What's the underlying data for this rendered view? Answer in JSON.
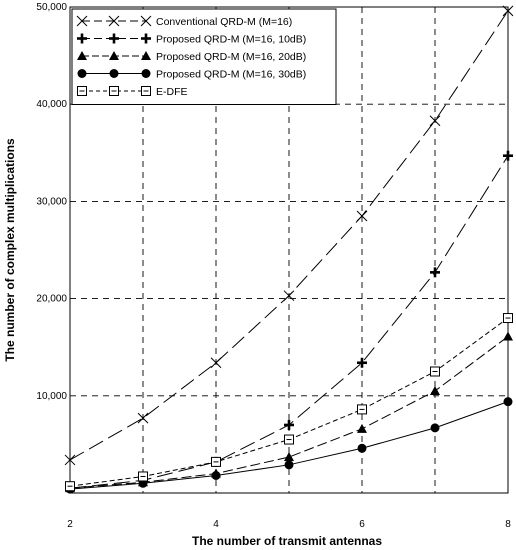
{
  "chart_data": {
    "type": "line",
    "title": "",
    "xlabel": "The number of transmit antennas",
    "ylabel": "The number of complex multiplications",
    "xlim": [
      2,
      8
    ],
    "ylim": [
      0,
      50000
    ],
    "xticks": [
      "2",
      "4",
      "6",
      "8"
    ],
    "xtick_values": [
      2,
      4,
      6,
      8
    ],
    "yticks": [
      "10,000",
      "20,000",
      "30,000",
      "40,000",
      "50,000"
    ],
    "ytick_values": [
      10000,
      20000,
      30000,
      40000,
      50000
    ],
    "grid": true,
    "legend_position": "top-left",
    "x": [
      2,
      3,
      4,
      5,
      6,
      7,
      8
    ],
    "series": [
      {
        "name": "Conventional QRD-M (M=16)",
        "values": [
          3400,
          7700,
          13400,
          20300,
          28500,
          38300,
          49600
        ],
        "marker": "x",
        "dash": "long",
        "color": "#000000"
      },
      {
        "name": "Proposed QRD-M (M=16, 10dB)",
        "values": [
          500,
          1300,
          3200,
          7000,
          13400,
          22700,
          34700
        ],
        "marker": "plus",
        "dash": "long",
        "color": "#000000"
      },
      {
        "name": "Proposed QRD-M (M=16, 20dB)",
        "values": [
          500,
          1100,
          2000,
          3700,
          6600,
          10500,
          16100
        ],
        "marker": "triangle",
        "dash": "medium",
        "color": "#000000"
      },
      {
        "name": "Proposed QRD-M (M=16, 30dB)",
        "values": [
          400,
          1000,
          1800,
          2900,
          4600,
          6700,
          9400
        ],
        "marker": "circle",
        "dash": "solid",
        "color": "#000000"
      },
      {
        "name": "E-DFE",
        "values": [
          700,
          1700,
          3200,
          5500,
          8600,
          12500,
          18000
        ],
        "marker": "square",
        "dash": "short",
        "color": "#000000"
      }
    ]
  }
}
